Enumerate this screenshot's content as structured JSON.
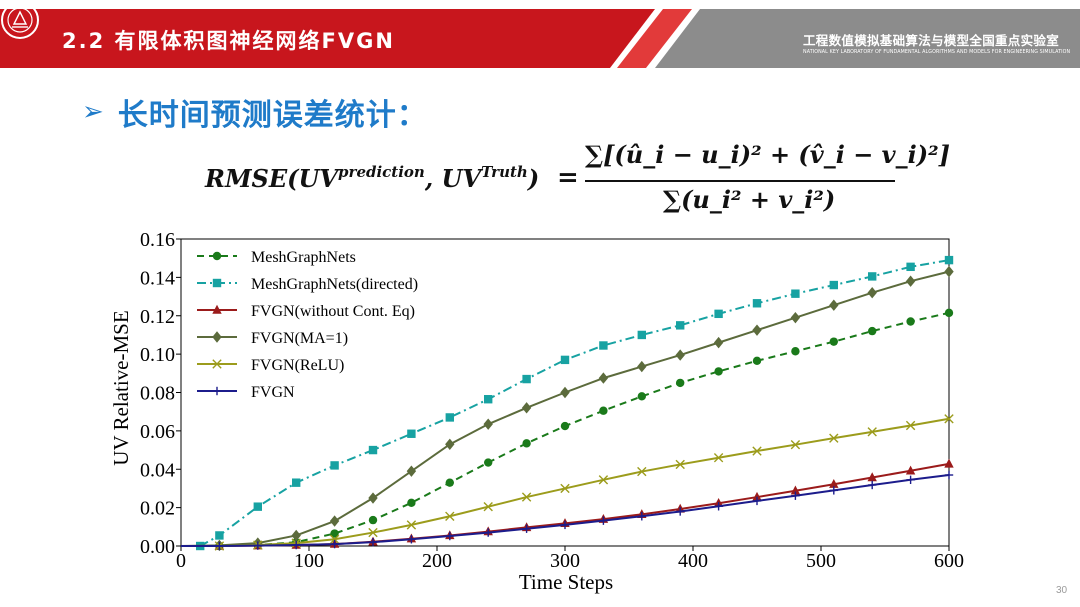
{
  "header": {
    "title": "2.2 有限体积图神经网络FVGN",
    "lab_name": "工程数值模拟基础算法与模型全国重点实验室",
    "lab_subtitle": "NATIONAL KEY LABORATORY OF FUNDAMENTAL ALGORITHMS AND MODELS FOR ENGINEERING SIMULATION"
  },
  "section": {
    "heading": "长时间预测误差统计",
    "colon": "："
  },
  "formula": {
    "lhs": "RMSE(UV",
    "lhs_sup1": "prediction",
    "lhs_mid": ", UV",
    "lhs_sup2": "Truth",
    "lhs_end": ")",
    "eq": "=",
    "numerator": "∑[(û_i − u_i)² + (v̂_i − v_i)²]",
    "denominator": "∑(u_i² + v_i²)"
  },
  "page_number": "30",
  "colors": {
    "header_red": "#c8161d",
    "header_gray": "#8c8c8c",
    "accent_blue": "#1f7bc9"
  },
  "chart_data": {
    "type": "line",
    "xlabel": "Time Steps",
    "ylabel": "UV Relative-MSE",
    "xlim": [
      0,
      600
    ],
    "ylim": [
      0,
      0.16
    ],
    "xticks": [
      0,
      100,
      200,
      300,
      400,
      500,
      600
    ],
    "yticks": [
      0.0,
      0.02,
      0.04,
      0.06,
      0.08,
      0.1,
      0.12,
      0.14,
      0.16
    ],
    "ytick_labels": [
      "0.00",
      "0.02",
      "0.04",
      "0.06",
      "0.08",
      "0.10",
      "0.12",
      "0.14",
      "0.16"
    ],
    "legend_position": "top-left",
    "grid": false,
    "series": [
      {
        "name": "MeshGraphNets",
        "color": "#1a7a1a",
        "dash": "dashed",
        "marker": "circle",
        "x": [
          0,
          30,
          60,
          90,
          120,
          150,
          180,
          210,
          240,
          270,
          300,
          330,
          360,
          390,
          420,
          450,
          480,
          510,
          540,
          570,
          600
        ],
        "y": [
          0,
          0,
          0.0005,
          0.002,
          0.0065,
          0.0135,
          0.0225,
          0.033,
          0.0435,
          0.0535,
          0.0625,
          0.0705,
          0.078,
          0.085,
          0.091,
          0.0965,
          0.1015,
          0.1065,
          0.112,
          0.117,
          0.1215
        ]
      },
      {
        "name": "MeshGraphNets(directed)",
        "color": "#17a2a2",
        "dash": "dashdot",
        "marker": "square",
        "x": [
          0,
          15,
          30,
          60,
          90,
          120,
          150,
          180,
          210,
          240,
          270,
          300,
          330,
          360,
          390,
          420,
          450,
          480,
          510,
          540,
          570,
          600
        ],
        "y": [
          0,
          0,
          0.0055,
          0.0205,
          0.033,
          0.042,
          0.05,
          0.0585,
          0.067,
          0.0765,
          0.087,
          0.097,
          0.1045,
          0.11,
          0.115,
          0.121,
          0.1265,
          0.1315,
          0.136,
          0.1405,
          0.1455,
          0.149
        ]
      },
      {
        "name": "FVGN(without Cont. Eq)",
        "color": "#9b1b1b",
        "dash": "solid",
        "marker": "triangle",
        "x": [
          0,
          30,
          60,
          90,
          120,
          150,
          180,
          210,
          240,
          270,
          300,
          330,
          360,
          390,
          420,
          450,
          480,
          510,
          540,
          570,
          600
        ],
        "y": [
          0,
          0,
          0.0002,
          0.0005,
          0.001,
          0.0022,
          0.0038,
          0.0055,
          0.0075,
          0.0097,
          0.0118,
          0.014,
          0.0165,
          0.0193,
          0.0223,
          0.0255,
          0.0288,
          0.0322,
          0.0357,
          0.0392,
          0.0428
        ]
      },
      {
        "name": "FVGN(MA=1)",
        "color": "#5c6b3c",
        "dash": "solid",
        "marker": "diamond",
        "x": [
          0,
          30,
          60,
          90,
          120,
          150,
          180,
          210,
          240,
          270,
          300,
          330,
          360,
          390,
          420,
          450,
          480,
          510,
          540,
          570,
          600
        ],
        "y": [
          0,
          0.0003,
          0.0015,
          0.0055,
          0.013,
          0.025,
          0.039,
          0.053,
          0.0635,
          0.072,
          0.08,
          0.0875,
          0.0935,
          0.0995,
          0.106,
          0.1125,
          0.119,
          0.1255,
          0.132,
          0.138,
          0.143
        ]
      },
      {
        "name": "FVGN(ReLU)",
        "color": "#9c9c1c",
        "dash": "solid",
        "marker": "x",
        "x": [
          0,
          30,
          60,
          90,
          120,
          150,
          180,
          210,
          240,
          270,
          300,
          330,
          360,
          390,
          420,
          450,
          480,
          510,
          540,
          570,
          600
        ],
        "y": [
          0,
          0,
          0.0005,
          0.0015,
          0.0035,
          0.007,
          0.011,
          0.0155,
          0.0205,
          0.0255,
          0.03,
          0.0345,
          0.0388,
          0.0425,
          0.046,
          0.0495,
          0.0528,
          0.0562,
          0.0595,
          0.0628,
          0.0663
        ]
      },
      {
        "name": "FVGN",
        "color": "#1c1c8c",
        "dash": "solid",
        "marker": "plus",
        "x": [
          0,
          30,
          60,
          90,
          120,
          150,
          180,
          210,
          240,
          270,
          300,
          330,
          360,
          390,
          420,
          450,
          480,
          510,
          540,
          570,
          600
        ],
        "y": [
          0,
          0,
          0.0002,
          0.0005,
          0.001,
          0.002,
          0.0035,
          0.0052,
          0.007,
          0.009,
          0.011,
          0.0132,
          0.0155,
          0.018,
          0.0207,
          0.0235,
          0.0262,
          0.029,
          0.0318,
          0.0345,
          0.037
        ]
      }
    ]
  }
}
